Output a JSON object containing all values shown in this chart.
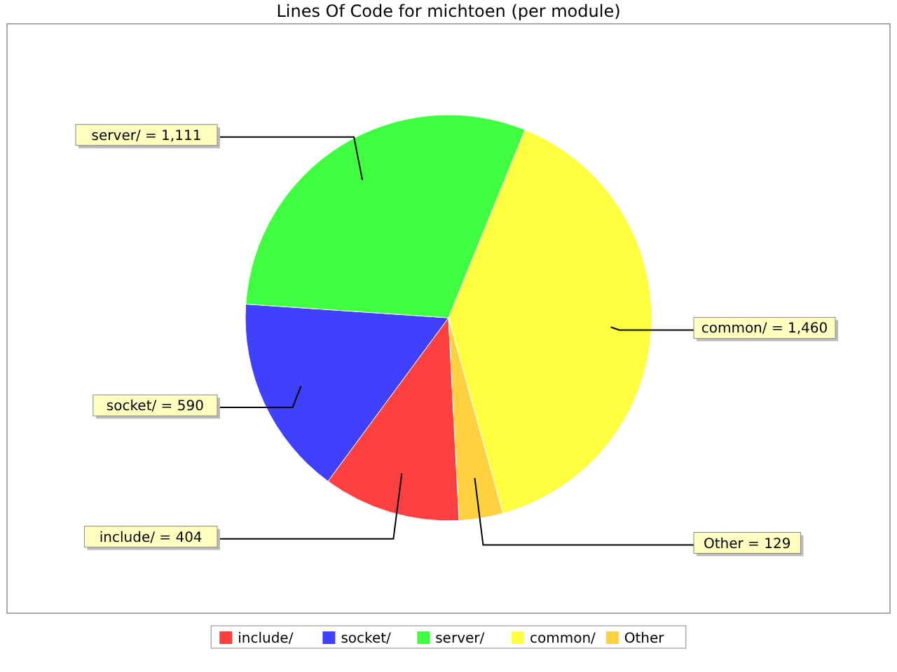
{
  "chart_data": {
    "type": "pie",
    "title": "Lines Of Code for michtoen (per module)",
    "categories": [
      "include/",
      "socket/",
      "server/",
      "common/",
      "Other"
    ],
    "values": [
      404,
      590,
      1111,
      1460,
      129
    ],
    "colors": [
      "#ff4040",
      "#4040ff",
      "#40ff40",
      "#ffff40",
      "#ffd040"
    ],
    "value_labels": [
      "include/ = 404",
      "socket/ = 590",
      "server/ = 1,111",
      "common/ = 1,460",
      "Other = 129"
    ],
    "legend": "bottom"
  }
}
